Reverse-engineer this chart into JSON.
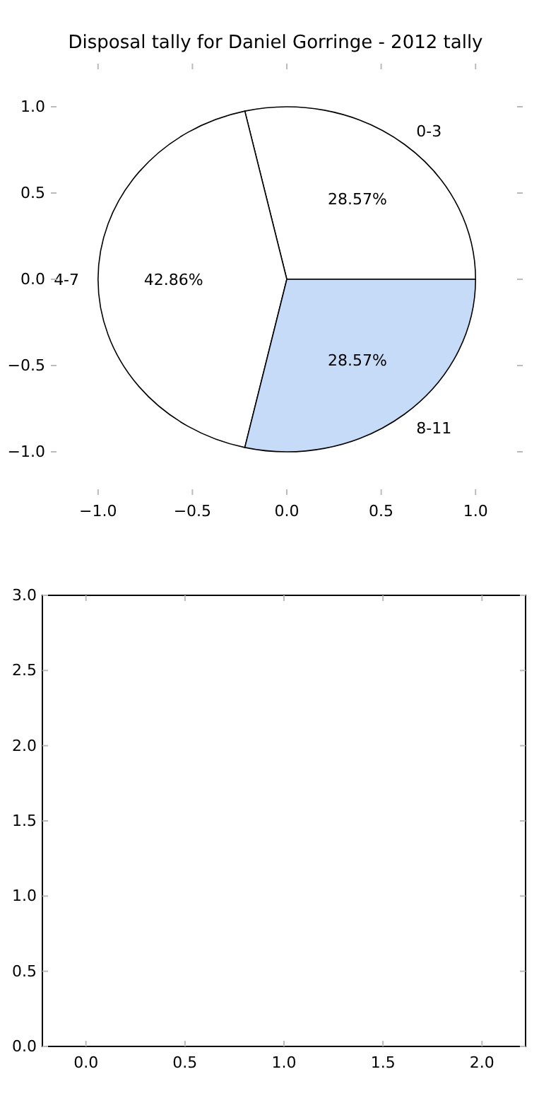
{
  "chart_data": [
    {
      "type": "pie",
      "title": "Disposal tally for Daniel Gorringe - 2012 tally",
      "categories": [
        "0-3",
        "4-7",
        "8-11"
      ],
      "values": [
        28.57,
        42.86,
        28.57
      ],
      "colors": [
        "#ffffff",
        "#ffffff",
        "#c6dbf7"
      ],
      "value_labels": [
        "28.57%",
        "42.86%",
        "28.57%"
      ]
    },
    {
      "type": "scatter",
      "xlim": [
        -1,
        1
      ],
      "ylim": [
        -1,
        1
      ],
      "xticks": [
        {
          "value": -1,
          "label": "−1.0"
        },
        {
          "value": -0.5,
          "label": "−0.5"
        },
        {
          "value": 0,
          "label": "0.0"
        },
        {
          "value": 0.5,
          "label": "0.5"
        },
        {
          "value": 1,
          "label": "1.0"
        }
      ],
      "yticks": [
        {
          "value": -1,
          "label": "−1.0"
        },
        {
          "value": -0.5,
          "label": "−0.5"
        },
        {
          "value": 0,
          "label": "0.0"
        },
        {
          "value": 0.5,
          "label": "0.5"
        },
        {
          "value": 1,
          "label": "1.0"
        }
      ]
    },
    {
      "type": "scatter",
      "xlim": [
        -0.22,
        2.22
      ],
      "ylim": [
        0,
        3
      ],
      "xticks": [
        {
          "value": 0,
          "label": "0.0"
        },
        {
          "value": 0.5,
          "label": "0.5"
        },
        {
          "value": 1,
          "label": "1.0"
        },
        {
          "value": 1.5,
          "label": "1.5"
        },
        {
          "value": 2,
          "label": "2.0"
        }
      ],
      "yticks": [
        {
          "value": 0,
          "label": "0.0"
        },
        {
          "value": 0.5,
          "label": "0.5"
        },
        {
          "value": 1,
          "label": "1.0"
        },
        {
          "value": 1.5,
          "label": "1.5"
        },
        {
          "value": 2,
          "label": "2.0"
        },
        {
          "value": 2.5,
          "label": "2.5"
        },
        {
          "value": 3,
          "label": "3.0"
        }
      ]
    }
  ]
}
